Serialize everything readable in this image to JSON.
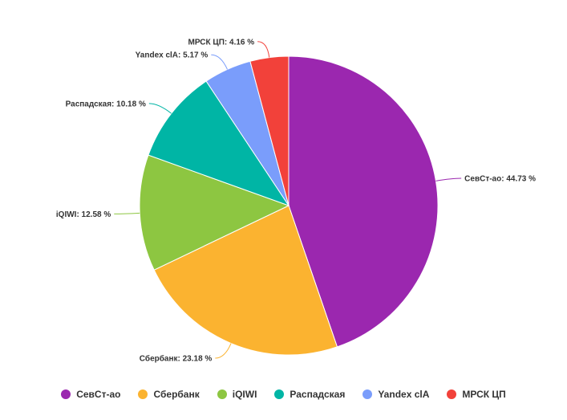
{
  "chart_data": {
    "type": "pie",
    "title": "",
    "slices": [
      {
        "name": "СевСт-ао",
        "value": 44.73,
        "label": "СевСт-ао: 44.73 %",
        "color": "#9b27af"
      },
      {
        "name": "Сбербанк",
        "value": 23.18,
        "label": "Сбербанк: 23.18 %",
        "color": "#fbb330"
      },
      {
        "name": "iQIWI",
        "value": 12.58,
        "label": "iQIWI: 12.58 %",
        "color": "#8dc641"
      },
      {
        "name": "Распадская",
        "value": 10.18,
        "label": "Распадская: 10.18 %",
        "color": "#00b5a5"
      },
      {
        "name": "Yandex clA",
        "value": 5.17,
        "label": "Yandex clA: 5.17 %",
        "color": "#7a9dfb"
      },
      {
        "name": "МРСК ЦП",
        "value": 4.16,
        "label": "МРСК ЦП: 4.16 %",
        "color": "#f2413a"
      }
    ],
    "legend_position": "bottom-center"
  },
  "legend": {
    "items": [
      {
        "label": "СевСт-ао",
        "color": "#9b27af"
      },
      {
        "label": "Сбербанк",
        "color": "#fbb330"
      },
      {
        "label": "iQIWI",
        "color": "#8dc641"
      },
      {
        "label": "Распадская",
        "color": "#00b5a5"
      },
      {
        "label": "Yandex clA",
        "color": "#7a9dfb"
      },
      {
        "label": "МРСК ЦП",
        "color": "#f2413a"
      }
    ]
  }
}
